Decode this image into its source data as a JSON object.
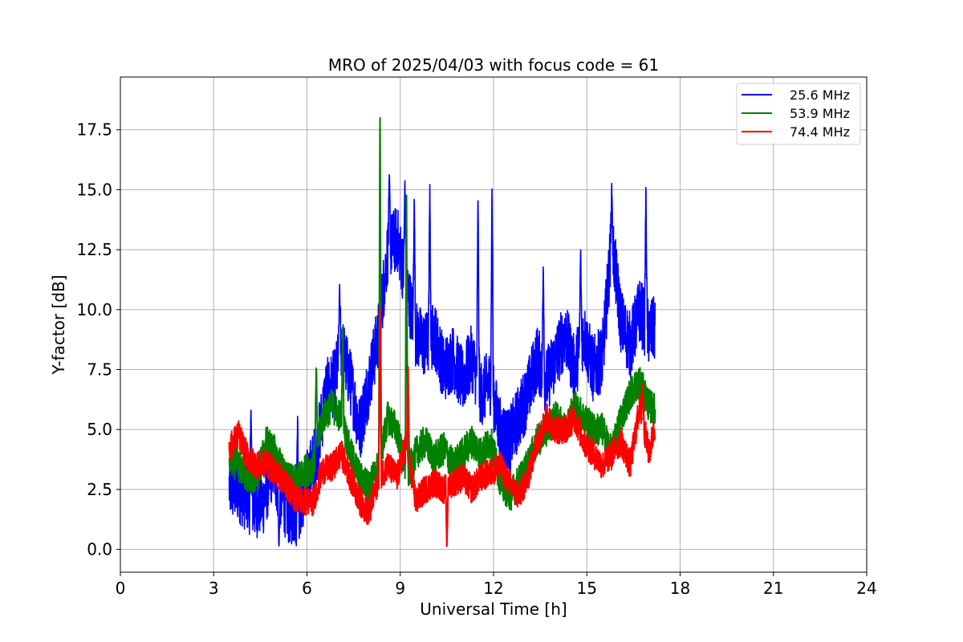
{
  "chart_data": {
    "type": "line",
    "title": "MRO of 2025/04/03 with focus code = 61",
    "xlabel": "Universal Time [h]",
    "ylabel": "Y-factor [dB]",
    "xlim": [
      0,
      24
    ],
    "ylim": [
      -0.95,
      19.7
    ],
    "xticks": [
      0,
      3,
      6,
      9,
      12,
      15,
      18,
      21,
      24
    ],
    "yticks": [
      0.0,
      2.5,
      5.0,
      7.5,
      10.0,
      12.5,
      15.0,
      17.5
    ],
    "ytick_labels": [
      "0.0",
      "2.5",
      "5.0",
      "7.5",
      "10.0",
      "12.5",
      "15.0",
      "17.5"
    ],
    "grid": true,
    "legend_position": "top-right",
    "series": [
      {
        "name": "25.6 MHz",
        "color": "#0000ff",
        "noise": 1.4,
        "x": [
          3.5,
          3.8,
          4.0,
          4.3,
          4.6,
          4.9,
          5.1,
          5.4,
          5.7,
          6.0,
          6.3,
          6.6,
          6.9,
          7.1,
          7.4,
          7.7,
          8.0,
          8.3,
          8.6,
          8.9,
          9.2,
          9.5,
          9.8,
          10.1,
          10.4,
          10.7,
          11.0,
          11.3,
          11.6,
          11.9,
          12.2,
          12.5,
          12.8,
          13.1,
          13.4,
          13.7,
          14.0,
          14.3,
          14.6,
          14.9,
          15.2,
          15.5,
          15.8,
          16.1,
          16.4,
          16.7,
          17.0,
          17.2
        ],
        "y": [
          2.6,
          2.5,
          2.2,
          1.8,
          2.0,
          3.5,
          2.5,
          1.6,
          1.5,
          2.8,
          4.0,
          6.5,
          7.0,
          8.5,
          7.0,
          5.0,
          7.0,
          9.0,
          12.5,
          13.0,
          11.0,
          9.0,
          8.5,
          9.0,
          7.5,
          8.0,
          7.0,
          8.0,
          6.5,
          7.0,
          5.0,
          4.5,
          5.5,
          6.5,
          8.0,
          7.0,
          8.0,
          9.0,
          7.5,
          9.0,
          7.5,
          8.0,
          13.0,
          9.5,
          8.5,
          10.0,
          9.0,
          9.2
        ],
        "spikes": [
          [
            4.2,
            6.1
          ],
          [
            5.1,
            0.0
          ],
          [
            5.7,
            5.8
          ],
          [
            7.05,
            11.1
          ],
          [
            8.65,
            15.7
          ],
          [
            9.15,
            15.5
          ],
          [
            9.45,
            14.9
          ],
          [
            9.95,
            15.3
          ],
          [
            11.5,
            15.1
          ],
          [
            11.95,
            15.4
          ],
          [
            13.6,
            12.0
          ],
          [
            14.8,
            12.7
          ],
          [
            15.8,
            15.3
          ],
          [
            16.9,
            15.4
          ]
        ]
      },
      {
        "name": "53.9 MHz",
        "color": "#008000",
        "noise": 0.7,
        "x": [
          3.5,
          3.8,
          4.1,
          4.4,
          4.7,
          5.0,
          5.3,
          5.6,
          5.9,
          6.2,
          6.5,
          6.8,
          7.1,
          7.4,
          7.7,
          8.0,
          8.3,
          8.6,
          8.9,
          9.2,
          9.5,
          9.8,
          10.1,
          10.4,
          10.7,
          11.0,
          11.3,
          11.6,
          11.9,
          12.2,
          12.5,
          12.8,
          13.1,
          13.4,
          13.7,
          14.0,
          14.3,
          14.6,
          14.9,
          15.2,
          15.5,
          15.8,
          16.1,
          16.4,
          16.7,
          17.0,
          17.2
        ],
        "y": [
          3.8,
          3.5,
          3.0,
          3.0,
          4.5,
          4.0,
          3.0,
          2.8,
          3.2,
          3.5,
          5.5,
          6.0,
          5.5,
          4.0,
          3.0,
          2.6,
          3.5,
          5.5,
          5.0,
          3.0,
          4.0,
          4.5,
          3.8,
          4.2,
          3.5,
          4.0,
          4.5,
          4.0,
          4.5,
          3.0,
          2.2,
          2.8,
          3.5,
          4.5,
          5.0,
          5.5,
          5.0,
          6.0,
          5.5,
          5.0,
          5.0,
          4.0,
          5.5,
          6.5,
          7.0,
          6.0,
          5.8
        ],
        "spikes": [
          [
            6.3,
            7.8
          ],
          [
            8.35,
            18.8
          ],
          [
            9.2,
            15.6
          ],
          [
            7.15,
            9.5
          ]
        ]
      },
      {
        "name": "74.4 MHz",
        "color": "#ff0000",
        "noise": 0.6,
        "x": [
          3.5,
          3.8,
          4.1,
          4.4,
          4.7,
          5.0,
          5.3,
          5.6,
          5.9,
          6.2,
          6.5,
          6.8,
          7.1,
          7.4,
          7.7,
          8.0,
          8.3,
          8.6,
          8.9,
          9.2,
          9.5,
          9.8,
          10.1,
          10.4,
          10.7,
          11.0,
          11.3,
          11.6,
          11.9,
          12.2,
          12.5,
          12.8,
          13.1,
          13.4,
          13.7,
          14.0,
          14.3,
          14.6,
          14.9,
          15.2,
          15.5,
          15.8,
          16.1,
          16.4,
          16.7,
          17.0,
          17.2
        ],
        "y": [
          4.2,
          4.8,
          3.8,
          3.5,
          3.6,
          3.2,
          2.8,
          2.2,
          2.0,
          2.0,
          3.3,
          3.4,
          4.0,
          3.0,
          2.0,
          1.5,
          3.0,
          3.5,
          3.0,
          4.5,
          2.0,
          2.5,
          2.8,
          2.5,
          2.8,
          3.0,
          2.5,
          3.0,
          3.2,
          3.5,
          2.8,
          2.2,
          3.0,
          4.5,
          5.5,
          5.0,
          5.0,
          5.5,
          4.5,
          4.0,
          3.5,
          4.0,
          4.5,
          3.5,
          6.0,
          4.0,
          5.2
        ],
        "spikes": [
          [
            8.35,
            10.5
          ],
          [
            9.25,
            7.8
          ],
          [
            10.5,
            0.0
          ],
          [
            16.8,
            6.9
          ]
        ]
      }
    ]
  }
}
